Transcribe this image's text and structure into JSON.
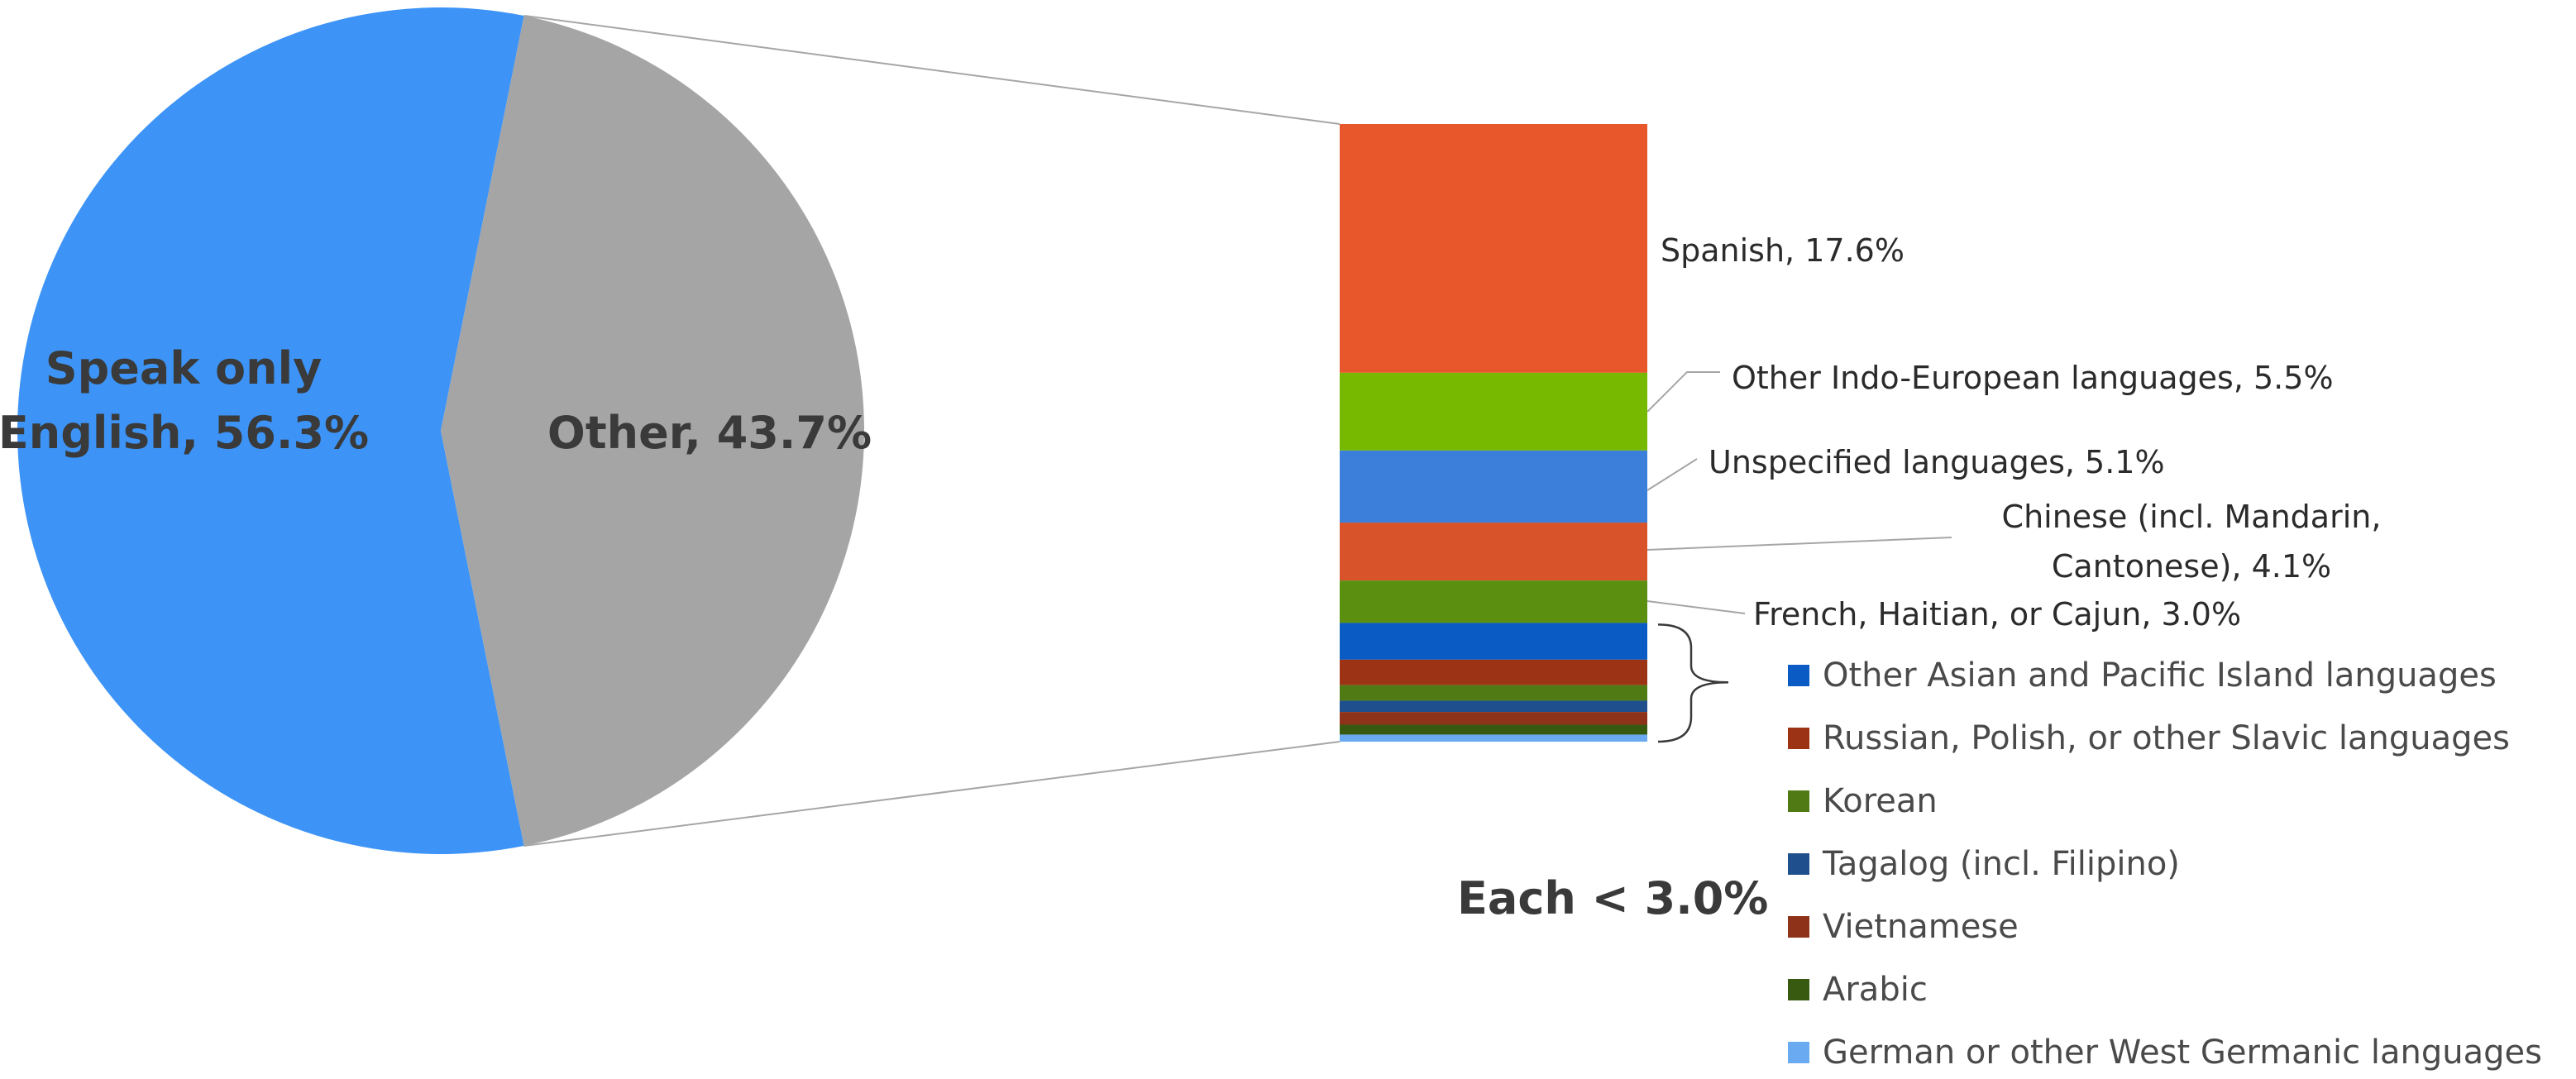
{
  "chart_data": {
    "type": "pie",
    "subtype": "bar-of-pie",
    "slices": [
      {
        "label": "Speak only English",
        "value": 56.3,
        "label_text": "Speak only English, 56.3%",
        "color": "#3d94f6"
      },
      {
        "label": "Other",
        "value": 43.7,
        "label_text": "Other, 43.7%",
        "color": "#a5a5a5"
      }
    ],
    "breakdown_of": "Other",
    "breakdown": [
      {
        "name": "Spanish",
        "value": 17.6,
        "label_text": "Spanish, 17.6%",
        "color": "#e8562c"
      },
      {
        "name": "Other Indo-European languages",
        "value": 5.5,
        "label_text": "Other Indo-European languages, 5.5%",
        "color": "#76b900"
      },
      {
        "name": "Unspecified languages",
        "value": 5.1,
        "label_text": "Unspecified languages, 5.1%",
        "color": "#3b7fdb"
      },
      {
        "name": "Chinese (incl. Mandarin, Cantonese)",
        "value": 4.1,
        "label_lines": [
          "Chinese (incl. Mandarin,",
          "Cantonese), 4.1%"
        ],
        "color": "#d9532a"
      },
      {
        "name": "French, Haitian, or Cajun",
        "value": 3.0,
        "label_text": "French, Haitian, or Cajun, 3.0%",
        "color": "#5a8f0f"
      },
      {
        "name": "Other Asian and Pacific Island languages",
        "value": 2.6,
        "color": "#0a5bc4"
      },
      {
        "name": "Russian, Polish, or other Slavic languages",
        "value": 1.8,
        "color": "#9c3314"
      },
      {
        "name": "Korean",
        "value": 1.1,
        "color": "#4f7a14"
      },
      {
        "name": "Tagalog (incl. Filipino)",
        "value": 0.8,
        "color": "#1f4f8c"
      },
      {
        "name": "Vietnamese",
        "value": 0.9,
        "color": "#8e3219"
      },
      {
        "name": "Arabic",
        "value": 0.7,
        "color": "#375a10"
      },
      {
        "name": "German or other West Germanic languages",
        "value": 0.5,
        "color": "#6aaaf0"
      }
    ],
    "legend": [
      "Other Asian and Pacific Island languages",
      "Russian, Polish, or other Slavic languages",
      "Korean",
      "Tagalog (incl. Filipino)",
      "Vietnamese",
      "Arabic",
      "German or other West Germanic languages"
    ],
    "grouped_note": "Each < 3.0%",
    "legend_placement": "bottom-right"
  }
}
